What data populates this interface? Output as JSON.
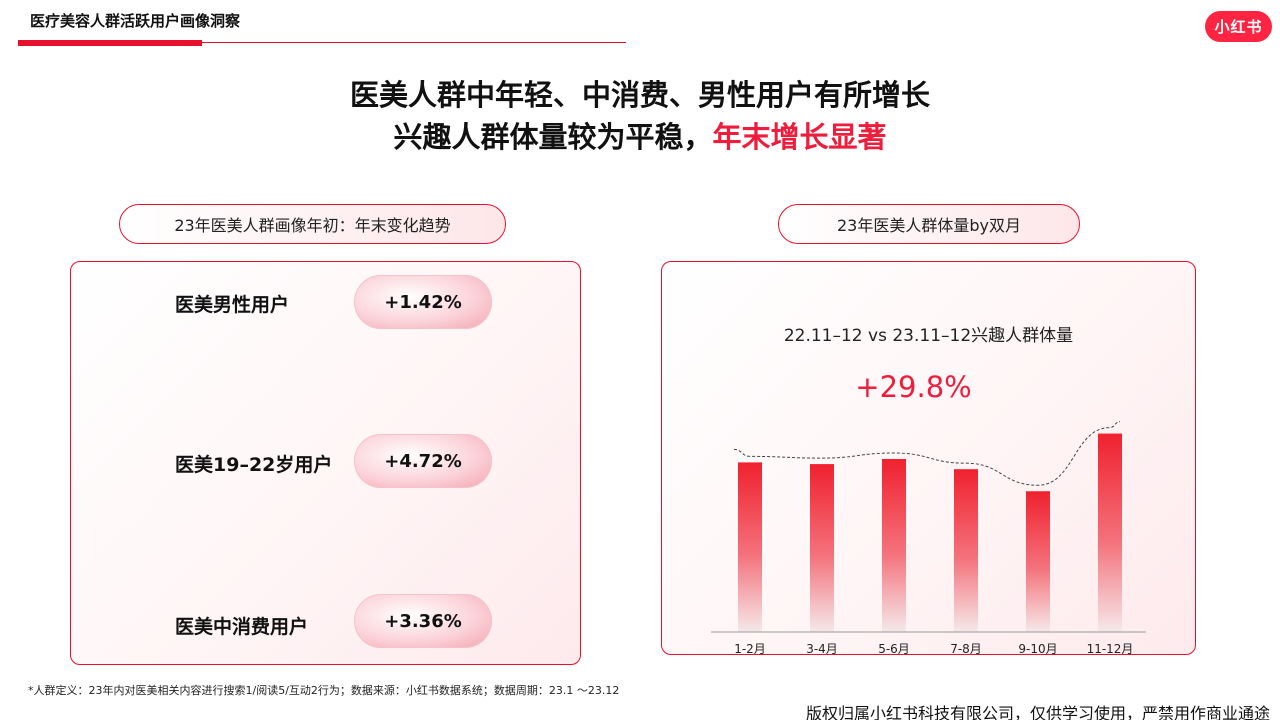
{
  "header": {
    "section_title": "医疗美容人群活跃用户画像洞察",
    "logo_text": "小红书"
  },
  "headline": {
    "line1": "医美人群中年轻、中消费、男性用户有所增长",
    "line2_prefix": "兴趣人群体量较为平稳，",
    "line2_highlight": "年末增长显著"
  },
  "left_panel": {
    "pill_title": "23年医美人群画像年初：年末变化趋势",
    "stats": [
      {
        "label": "医美男性用户",
        "value": "+1.42%"
      },
      {
        "label": "医美19–22岁用户",
        "value": "+4.72%"
      },
      {
        "label": "医美中消费用户",
        "value": "+3.36%"
      }
    ]
  },
  "right_panel": {
    "pill_title": "23年医美人群体量by双月",
    "subtitle": "22.11–12 vs 23.11–12兴趣人群体量",
    "highlight_value": "+29.8%"
  },
  "chart_data": {
    "type": "bar",
    "categories": [
      "1-2月",
      "3-4月",
      "5-6月",
      "7-8月",
      "9-10月",
      "11-12月"
    ],
    "values": [
      100,
      99,
      102,
      96,
      83,
      117
    ],
    "ylim": [
      0,
      125
    ],
    "trend_line": "dashed",
    "grid": false,
    "bar_color": "#f0212f"
  },
  "footer": {
    "footnote": "*人群定义：23年内对医美相关内容进行搜索1/阅读5/互动2行为；数据来源：小红书数据系统；数据周期：23.1 ～23.12",
    "copyright": "版权归属小红书科技有限公司，仅供学习使用，严禁用作商业通途"
  }
}
